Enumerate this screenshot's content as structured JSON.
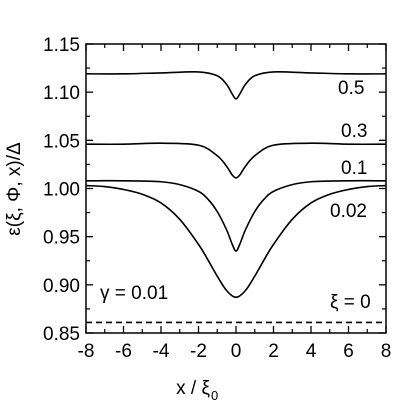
{
  "chart_data": {
    "type": "line",
    "xlabel": "x / ξ",
    "xlabel_sub": "0",
    "ylabel": "ε(ξ, Φ, x)/Δ",
    "xlim": [
      -8,
      8
    ],
    "ylim": [
      0.85,
      1.15
    ],
    "x_ticks": [
      -8,
      -6,
      -4,
      -2,
      0,
      2,
      4,
      6,
      8
    ],
    "x_tick_labels": [
      "-8",
      "-6",
      "-4",
      "-2",
      "0",
      "2",
      "4",
      "6",
      "8"
    ],
    "y_ticks": [
      0.85,
      0.9,
      0.95,
      1.0,
      1.05,
      1.1,
      1.15
    ],
    "y_tick_labels": [
      "0.85",
      "0.90",
      "0.95",
      "1.00",
      "1.05",
      "1.10",
      "1.15"
    ],
    "grid": false,
    "annotations": {
      "gamma": "γ = 0.01"
    },
    "series": [
      {
        "name": "0.5",
        "style": "solid",
        "x": [
          -8,
          -6,
          -4,
          -2,
          -1,
          -0.5,
          -0.2,
          0,
          0.2,
          0.5,
          1,
          2,
          4,
          6,
          8
        ],
        "y": [
          1.119,
          1.119,
          1.12,
          1.121,
          1.117,
          1.108,
          1.098,
          1.093,
          1.098,
          1.108,
          1.117,
          1.121,
          1.12,
          1.119,
          1.119
        ]
      },
      {
        "name": "0.3",
        "style": "solid",
        "x": [
          -8,
          -6,
          -4,
          -2,
          -1,
          -0.5,
          -0.2,
          0,
          0.2,
          0.5,
          1,
          2,
          4,
          6,
          8
        ],
        "y": [
          1.046,
          1.046,
          1.047,
          1.045,
          1.034,
          1.023,
          1.014,
          1.011,
          1.014,
          1.023,
          1.034,
          1.045,
          1.047,
          1.046,
          1.046
        ]
      },
      {
        "name": "0.1",
        "style": "solid",
        "x": [
          -8,
          -6,
          -4,
          -3,
          -2,
          -1.5,
          -1,
          -0.5,
          -0.2,
          0,
          0.2,
          0.5,
          1,
          1.5,
          2,
          3,
          4,
          6,
          8
        ],
        "y": [
          1.008,
          1.008,
          1.007,
          1.004,
          0.997,
          0.989,
          0.976,
          0.957,
          0.942,
          0.935,
          0.942,
          0.957,
          0.976,
          0.989,
          0.997,
          1.004,
          1.007,
          1.008,
          1.008
        ]
      },
      {
        "name": "0.02",
        "style": "solid",
        "x": [
          -8,
          -7,
          -6,
          -5,
          -4,
          -3,
          -2,
          -1.5,
          -1,
          -0.5,
          0,
          0.5,
          1,
          1.5,
          2,
          3,
          4,
          5,
          6,
          7,
          8
        ],
        "y": [
          1.003,
          1.002,
          0.999,
          0.994,
          0.985,
          0.968,
          0.942,
          0.926,
          0.909,
          0.894,
          0.887,
          0.894,
          0.909,
          0.926,
          0.942,
          0.968,
          0.985,
          0.994,
          0.999,
          1.002,
          1.003
        ]
      },
      {
        "name": "ξ = 0",
        "style": "dashed",
        "x": [
          -8,
          8
        ],
        "y": [
          0.861,
          0.861
        ]
      }
    ]
  }
}
